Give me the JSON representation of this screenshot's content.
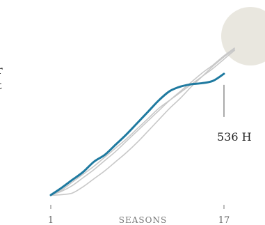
{
  "chart_data": {
    "type": "line",
    "xlabel": "SEASONS",
    "x_ticks": [
      "1",
      "17"
    ],
    "xlim": [
      1,
      17
    ],
    "highlight": {
      "color": "#1f7aa0",
      "x": [
        1,
        2,
        3,
        4,
        5,
        6,
        7,
        8,
        9,
        10,
        11,
        12,
        13,
        14,
        15,
        16,
        17
      ],
      "values": [
        3,
        35,
        70,
        105,
        150,
        180,
        225,
        270,
        320,
        370,
        420,
        460,
        480,
        490,
        495,
        505,
        536
      ]
    },
    "comparison_color": "#c8c8c8",
    "comparison": [
      {
        "x": [
          1,
          2,
          3,
          4,
          5,
          6,
          7,
          8,
          9,
          10,
          11,
          12,
          13,
          14,
          15,
          16,
          17,
          18
        ],
        "values": [
          3,
          25,
          60,
          95,
          130,
          170,
          210,
          250,
          295,
          340,
          385,
          420,
          455,
          490,
          525,
          560,
          600,
          640
        ]
      },
      {
        "x": [
          1,
          2,
          3,
          4,
          5,
          6,
          7,
          8,
          9,
          10,
          11,
          12,
          13,
          14,
          15,
          16,
          17,
          18
        ],
        "values": [
          3,
          20,
          45,
          80,
          115,
          155,
          195,
          240,
          285,
          330,
          375,
          420,
          460,
          500,
          540,
          575,
          615,
          650
        ]
      },
      {
        "x": [
          1,
          2,
          3,
          4,
          5,
          6,
          7,
          8,
          9,
          10,
          11,
          12,
          13,
          14,
          15,
          16,
          17,
          18
        ],
        "values": [
          2,
          5,
          12,
          40,
          75,
          110,
          150,
          190,
          235,
          285,
          335,
          385,
          430,
          480,
          525,
          570,
          610,
          645
        ]
      }
    ],
    "callout": {
      "label": "536 H",
      "value": 536,
      "x": 17
    },
    "partial_left_labels": [
      "r",
      "t"
    ],
    "halo_color": "#e9e7df",
    "ylim": [
      0,
      750
    ]
  }
}
